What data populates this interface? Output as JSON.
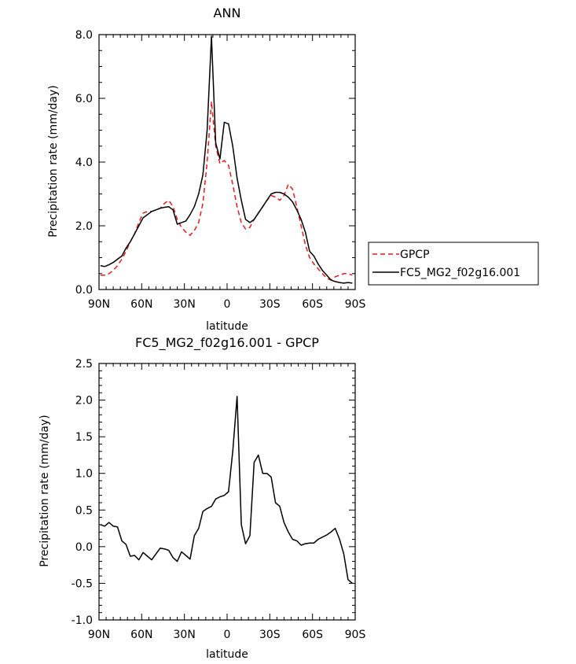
{
  "chart_data": [
    {
      "type": "line",
      "title": "ANN",
      "xlabel": "latitude",
      "ylabel": "Precipitation rate (mm/day)",
      "x_ticks": [
        90,
        60,
        30,
        0,
        -30,
        -60,
        -90
      ],
      "x_tick_labels": [
        "90N",
        "60N",
        "30N",
        "0",
        "30S",
        "60S",
        "90S"
      ],
      "xlim": [
        90,
        -90
      ],
      "ylim": [
        0,
        8
      ],
      "y_ticks": [
        0,
        2,
        4,
        6,
        8
      ],
      "y_tick_labels": [
        "0.0",
        "2.0",
        "4.0",
        "6.0",
        "8.0"
      ],
      "legend": "outside-right",
      "series": [
        {
          "name": "GPCP",
          "color": "#e41a1c",
          "dash": "dashed",
          "x": [
            89,
            86,
            83,
            80,
            77,
            74,
            71,
            68,
            65,
            62,
            59,
            56,
            53,
            50,
            47,
            44,
            41,
            38,
            35,
            32,
            29,
            26,
            23,
            20,
            17,
            14,
            11,
            8,
            5,
            2,
            -1,
            -4,
            -7,
            -10,
            -13,
            -16,
            -19,
            -22,
            -25,
            -28,
            -31,
            -34,
            -37,
            -40,
            -43,
            -46,
            -49,
            -52,
            -55,
            -58,
            -61,
            -64,
            -67,
            -70,
            -73,
            -76,
            -79,
            -82,
            -85,
            -88
          ],
          "y": [
            0.45,
            0.45,
            0.5,
            0.6,
            0.75,
            0.95,
            1.2,
            1.5,
            1.75,
            2.1,
            2.4,
            2.45,
            2.45,
            2.5,
            2.55,
            2.7,
            2.8,
            2.6,
            2.2,
            1.95,
            1.8,
            1.7,
            1.85,
            2.1,
            2.7,
            4.0,
            5.9,
            4.5,
            3.95,
            4.05,
            3.9,
            3.3,
            2.6,
            2.1,
            1.9,
            1.95,
            2.2,
            2.4,
            2.6,
            2.8,
            2.95,
            2.9,
            2.8,
            2.95,
            3.3,
            3.15,
            2.6,
            2.0,
            1.4,
            1.0,
            0.8,
            0.65,
            0.5,
            0.35,
            0.3,
            0.4,
            0.45,
            0.5,
            0.5,
            0.45
          ]
        },
        {
          "name": "FC5_MG2_f02g16.001",
          "color": "#000000",
          "dash": "solid",
          "x": [
            89,
            86,
            83,
            80,
            77,
            74,
            71,
            68,
            65,
            62,
            59,
            56,
            53,
            50,
            47,
            44,
            41,
            38,
            35,
            32,
            29,
            26,
            23,
            20,
            17,
            14,
            11,
            8,
            5,
            2,
            -1,
            -4,
            -7,
            -10,
            -13,
            -16,
            -19,
            -22,
            -25,
            -28,
            -31,
            -34,
            -37,
            -40,
            -43,
            -46,
            -49,
            -52,
            -55,
            -58,
            -61,
            -64,
            -67,
            -70,
            -73,
            -76,
            -79,
            -82,
            -85,
            -88
          ],
          "y": [
            0.75,
            0.72,
            0.78,
            0.85,
            0.95,
            1.05,
            1.3,
            1.5,
            1.75,
            2.0,
            2.25,
            2.35,
            2.45,
            2.5,
            2.55,
            2.58,
            2.6,
            2.5,
            2.05,
            2.1,
            2.15,
            2.35,
            2.6,
            3.0,
            3.6,
            5.0,
            7.95,
            4.6,
            4.1,
            5.25,
            5.2,
            4.5,
            3.5,
            2.8,
            2.2,
            2.1,
            2.2,
            2.4,
            2.6,
            2.8,
            3.0,
            3.05,
            3.05,
            3.0,
            2.9,
            2.75,
            2.5,
            2.2,
            1.8,
            1.2,
            1.05,
            0.8,
            0.6,
            0.45,
            0.3,
            0.25,
            0.22,
            0.2,
            0.22,
            0.2
          ]
        }
      ]
    },
    {
      "type": "line",
      "title": "FC5_MG2_f02g16.001 - GPCP",
      "xlabel": "latitude",
      "ylabel": "Precipitation rate (mm/day)",
      "x_ticks": [
        90,
        60,
        30,
        0,
        -30,
        -60,
        -90
      ],
      "x_tick_labels": [
        "90N",
        "60N",
        "30N",
        "0",
        "30S",
        "60S",
        "90S"
      ],
      "xlim": [
        90,
        -90
      ],
      "ylim": [
        -1,
        2.5
      ],
      "y_ticks": [
        -1.0,
        -0.5,
        0.0,
        0.5,
        1.0,
        1.5,
        2.0,
        2.5
      ],
      "y_tick_labels": [
        "-1.0",
        "-0.5",
        "0.0",
        "0.5",
        "1.0",
        "1.5",
        "2.0",
        "2.5"
      ],
      "series": [
        {
          "color": "#000000",
          "dash": "solid",
          "x": [
            89,
            86,
            83,
            80,
            77,
            74,
            71,
            68,
            65,
            62,
            59,
            56,
            53,
            50,
            47,
            44,
            41,
            38,
            35,
            32,
            29,
            26,
            23,
            20,
            17,
            14,
            11,
            8,
            5,
            2,
            -1,
            -4,
            -7,
            -10,
            -13,
            -16,
            -19,
            -22,
            -25,
            -28,
            -31,
            -34,
            -37,
            -40,
            -43,
            -46,
            -49,
            -52,
            -55,
            -58,
            -61,
            -64,
            -67,
            -70,
            -73,
            -76,
            -79,
            -82,
            -85,
            -88
          ],
          "y": [
            0.3,
            0.28,
            0.33,
            0.28,
            0.27,
            0.08,
            0.03,
            -0.13,
            -0.12,
            -0.18,
            -0.08,
            -0.13,
            -0.18,
            -0.1,
            -0.02,
            -0.03,
            -0.05,
            -0.15,
            -0.2,
            -0.07,
            -0.12,
            -0.17,
            0.15,
            0.25,
            0.48,
            0.52,
            0.55,
            0.65,
            0.68,
            0.7,
            0.75,
            1.3,
            2.05,
            0.3,
            0.04,
            0.15,
            1.15,
            1.25,
            1.0,
            1.0,
            0.95,
            0.6,
            0.55,
            0.33,
            0.2,
            0.1,
            0.08,
            0.02,
            0.04,
            0.05,
            0.05,
            0.1,
            0.13,
            0.16,
            0.2,
            0.25,
            0.1,
            -0.1,
            -0.45,
            -0.5
          ]
        }
      ]
    }
  ]
}
